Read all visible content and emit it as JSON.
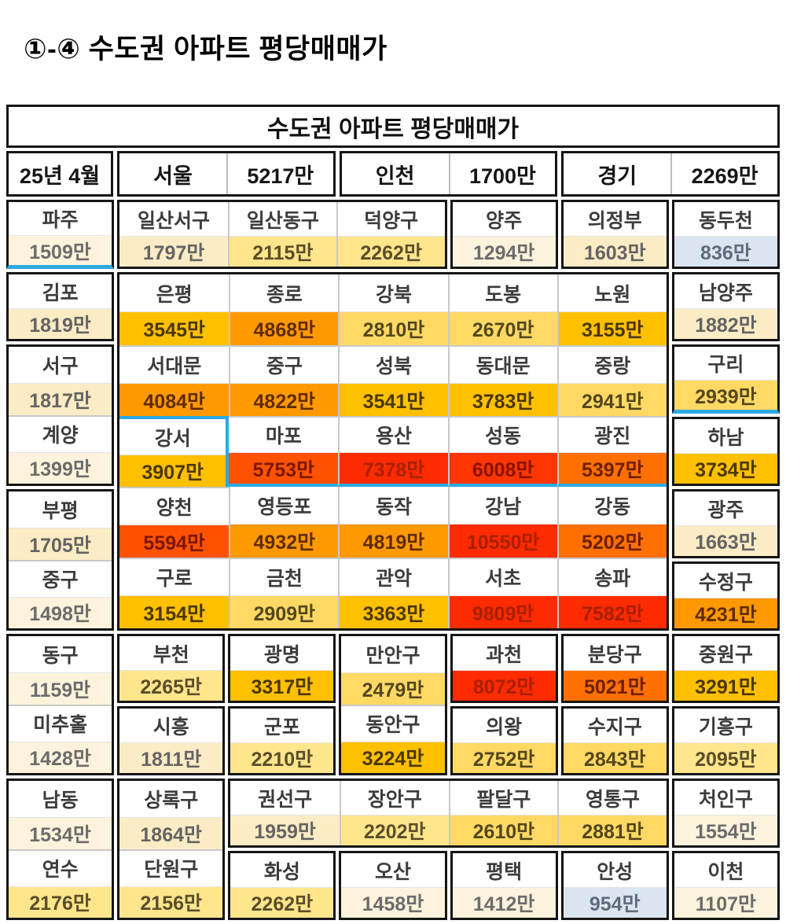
{
  "page_title": "①-④ 수도권 아파트 평당매매가",
  "table": {
    "title": "수도권 아파트 평당매매가",
    "header": {
      "date": "25년 4월",
      "regions": [
        {
          "name": "서울",
          "value": "5217만"
        },
        {
          "name": "인천",
          "value": "1700만"
        },
        {
          "name": "경기",
          "value": "2269만"
        }
      ]
    },
    "colors": {
      "highlight": "#2CA9E1",
      "border_thick": "#151515",
      "border_thin": "#C9C9C9"
    },
    "tiers": {
      "blue": {
        "bg": "#DBE5F1",
        "fg": "#5E6C7C"
      },
      "cream1": {
        "bg": "#FDF3DC",
        "fg": "#6C6C6C"
      },
      "cream2": {
        "bg": "#FBECC5",
        "fg": "#646464"
      },
      "yellow1": {
        "bg": "#FFE68C",
        "fg": "#5B4E2A"
      },
      "yellow2": {
        "bg": "#FFD964",
        "fg": "#54471D"
      },
      "gold": {
        "bg": "#FFC000",
        "fg": "#4A3700"
      },
      "orange": {
        "bg": "#FF9900",
        "fg": "#5F2C00"
      },
      "orange2": {
        "bg": "#FF7000",
        "fg": "#6E1F00"
      },
      "orange3": {
        "bg": "#FF5200",
        "fg": "#7A1600"
      },
      "red2": {
        "bg": "#FF3600",
        "fg": "#8A1200"
      },
      "red": {
        "bg": "#FF2B00",
        "fg": "#A81F00"
      }
    },
    "groups": [
      {
        "r": 1,
        "c": 1,
        "cyan_bottom": true,
        "cells": [
          {
            "n": "파주",
            "v": "1509만",
            "t": "cream1"
          }
        ]
      },
      {
        "r": 1,
        "c": 2,
        "cs": 3,
        "cells": [
          {
            "n": "일산서구",
            "v": "1797만",
            "t": "cream2"
          },
          {
            "n": "일산동구",
            "v": "2115만",
            "t": "yellow1"
          },
          {
            "n": "덕양구",
            "v": "2262만",
            "t": "yellow1"
          }
        ]
      },
      {
        "r": 1,
        "c": 5,
        "cells": [
          {
            "n": "양주",
            "v": "1294만",
            "t": "cream1"
          }
        ]
      },
      {
        "r": 1,
        "c": 6,
        "cells": [
          {
            "n": "의정부",
            "v": "1603만",
            "t": "cream2"
          }
        ]
      },
      {
        "r": 1,
        "c": 7,
        "cells": [
          {
            "n": "동두천",
            "v": "836만",
            "t": "blue"
          }
        ]
      },
      {
        "r": 2,
        "c": 1,
        "cells": [
          {
            "n": "김포",
            "v": "1819만",
            "t": "cream2"
          }
        ]
      },
      {
        "r": 2,
        "c": 2,
        "rs": 5,
        "cs": 5,
        "cells": [
          {
            "n": "은평",
            "v": "3545만",
            "t": "gold"
          },
          {
            "n": "종로",
            "v": "4868만",
            "t": "orange"
          },
          {
            "n": "강북",
            "v": "2810만",
            "t": "yellow2"
          },
          {
            "n": "도봉",
            "v": "2670만",
            "t": "yellow2"
          },
          {
            "n": "노원",
            "v": "3155만",
            "t": "gold"
          },
          {
            "n": "서대문",
            "v": "4084만",
            "t": "orange"
          },
          {
            "n": "중구",
            "v": "4822만",
            "t": "orange"
          },
          {
            "n": "성북",
            "v": "3541만",
            "t": "gold"
          },
          {
            "n": "동대문",
            "v": "3783만",
            "t": "gold"
          },
          {
            "n": "중랑",
            "v": "2941만",
            "t": "yellow2"
          },
          {
            "n": "강서",
            "v": "3907만",
            "t": "gold",
            "cls": "ct cr"
          },
          {
            "n": "마포",
            "v": "5753만",
            "t": "orange3",
            "cls": "cb nl"
          },
          {
            "n": "용산",
            "v": "7378만",
            "t": "red",
            "cls": "cb"
          },
          {
            "n": "성동",
            "v": "6008만",
            "t": "red2",
            "cls": "cb"
          },
          {
            "n": "광진",
            "v": "5397만",
            "t": "orange2",
            "cls": "cb"
          },
          {
            "n": "양천",
            "v": "5594만",
            "t": "orange3"
          },
          {
            "n": "영등포",
            "v": "4932만",
            "t": "orange",
            "cls": "nt"
          },
          {
            "n": "동작",
            "v": "4819만",
            "t": "orange",
            "cls": "nt"
          },
          {
            "n": "강남",
            "v": "10550만",
            "t": "red",
            "cls": "nt"
          },
          {
            "n": "강동",
            "v": "5202만",
            "t": "orange2",
            "cls": "nt"
          },
          {
            "n": "구로",
            "v": "3154만",
            "t": "gold"
          },
          {
            "n": "금천",
            "v": "2909만",
            "t": "yellow2"
          },
          {
            "n": "관악",
            "v": "3363만",
            "t": "gold"
          },
          {
            "n": "서초",
            "v": "9809만",
            "t": "red"
          },
          {
            "n": "송파",
            "v": "7582만",
            "t": "red"
          }
        ]
      },
      {
        "r": 2,
        "c": 7,
        "cells": [
          {
            "n": "남양주",
            "v": "1882만",
            "t": "cream2"
          }
        ]
      },
      {
        "r": 3,
        "c": 1,
        "rs": 2,
        "cells": [
          {
            "n": "서구",
            "v": "1817만",
            "t": "cream2"
          },
          {
            "n": "계양",
            "v": "1399만",
            "t": "cream1"
          }
        ]
      },
      {
        "r": 3,
        "c": 7,
        "cyan_bottom": true,
        "cells": [
          {
            "n": "구리",
            "v": "2939만",
            "t": "yellow2"
          }
        ]
      },
      {
        "r": 4,
        "c": 7,
        "cells": [
          {
            "n": "하남",
            "v": "3734만",
            "t": "gold"
          }
        ]
      },
      {
        "r": 5,
        "c": 1,
        "rs": 2,
        "cells": [
          {
            "n": "부평",
            "v": "1705만",
            "t": "cream2"
          },
          {
            "n": "중구",
            "v": "1498만",
            "t": "cream1"
          }
        ]
      },
      {
        "r": 5,
        "c": 7,
        "cells": [
          {
            "n": "광주",
            "v": "1663만",
            "t": "cream2"
          }
        ]
      },
      {
        "r": 6,
        "c": 7,
        "cells": [
          {
            "n": "수정구",
            "v": "4231만",
            "t": "orange"
          }
        ]
      },
      {
        "r": 7,
        "c": 1,
        "rs": 2,
        "cells": [
          {
            "n": "동구",
            "v": "1159만",
            "t": "cream1"
          },
          {
            "n": "미추홀",
            "v": "1428만",
            "t": "cream1"
          }
        ]
      },
      {
        "r": 7,
        "c": 2,
        "cells": [
          {
            "n": "부천",
            "v": "2265만",
            "t": "yellow1"
          }
        ]
      },
      {
        "r": 7,
        "c": 3,
        "cells": [
          {
            "n": "광명",
            "v": "3317만",
            "t": "gold"
          }
        ]
      },
      {
        "r": 7,
        "c": 4,
        "rs": 2,
        "cells": [
          {
            "n": "만안구",
            "v": "2479만",
            "t": "yellow2"
          },
          {
            "n": "동안구",
            "v": "3224만",
            "t": "gold"
          }
        ]
      },
      {
        "r": 7,
        "c": 5,
        "cells": [
          {
            "n": "과천",
            "v": "8072만",
            "t": "red"
          }
        ]
      },
      {
        "r": 7,
        "c": 6,
        "cells": [
          {
            "n": "분당구",
            "v": "5021만",
            "t": "orange2"
          }
        ]
      },
      {
        "r": 7,
        "c": 7,
        "cells": [
          {
            "n": "중원구",
            "v": "3291만",
            "t": "gold"
          }
        ]
      },
      {
        "r": 8,
        "c": 2,
        "cells": [
          {
            "n": "시흥",
            "v": "1811만",
            "t": "cream2"
          }
        ]
      },
      {
        "r": 8,
        "c": 3,
        "cells": [
          {
            "n": "군포",
            "v": "2210만",
            "t": "yellow1"
          }
        ]
      },
      {
        "r": 8,
        "c": 5,
        "cells": [
          {
            "n": "의왕",
            "v": "2752만",
            "t": "yellow2"
          }
        ]
      },
      {
        "r": 8,
        "c": 6,
        "cells": [
          {
            "n": "수지구",
            "v": "2843만",
            "t": "yellow2"
          }
        ]
      },
      {
        "r": 8,
        "c": 7,
        "cells": [
          {
            "n": "기흥구",
            "v": "2095만",
            "t": "yellow1"
          }
        ]
      },
      {
        "r": 9,
        "c": 1,
        "rs": 2,
        "cells": [
          {
            "n": "남동",
            "v": "1534만",
            "t": "cream1"
          },
          {
            "n": "연수",
            "v": "2176만",
            "t": "yellow1"
          }
        ]
      },
      {
        "r": 9,
        "c": 2,
        "rs": 2,
        "cells": [
          {
            "n": "상록구",
            "v": "1864만",
            "t": "cream2"
          },
          {
            "n": "단원구",
            "v": "2156만",
            "t": "yellow1"
          }
        ]
      },
      {
        "r": 9,
        "c": 3,
        "cs": 4,
        "cells": [
          {
            "n": "권선구",
            "v": "1959만",
            "t": "cream2"
          },
          {
            "n": "장안구",
            "v": "2202만",
            "t": "yellow1"
          },
          {
            "n": "팔달구",
            "v": "2610만",
            "t": "yellow2"
          },
          {
            "n": "영통구",
            "v": "2881만",
            "t": "yellow2"
          }
        ]
      },
      {
        "r": 9,
        "c": 7,
        "cells": [
          {
            "n": "처인구",
            "v": "1554만",
            "t": "cream1"
          }
        ]
      },
      {
        "r": 10,
        "c": 3,
        "cells": [
          {
            "n": "화성",
            "v": "2262만",
            "t": "yellow1"
          }
        ]
      },
      {
        "r": 10,
        "c": 4,
        "cells": [
          {
            "n": "오산",
            "v": "1458만",
            "t": "cream1"
          }
        ]
      },
      {
        "r": 10,
        "c": 5,
        "cells": [
          {
            "n": "평택",
            "v": "1412만",
            "t": "cream1"
          }
        ]
      },
      {
        "r": 10,
        "c": 6,
        "cells": [
          {
            "n": "안성",
            "v": "954만",
            "t": "blue"
          }
        ]
      },
      {
        "r": 10,
        "c": 7,
        "cells": [
          {
            "n": "이천",
            "v": "1107만",
            "t": "cream1"
          }
        ]
      }
    ]
  },
  "chart_data": {
    "type": "heatmap",
    "title": "수도권 아파트 평당매매가",
    "date": "25년 4월",
    "unit": "만",
    "region_averages": [
      {
        "name": "서울",
        "value": 5217
      },
      {
        "name": "인천",
        "value": 1700
      },
      {
        "name": "경기",
        "value": 2269
      }
    ],
    "rows": [
      [
        [
          "파주",
          1509
        ],
        [
          "일산서구",
          1797
        ],
        [
          "일산동구",
          2115
        ],
        [
          "덕양구",
          2262
        ],
        [
          "양주",
          1294
        ],
        [
          "의정부",
          1603
        ],
        [
          "동두천",
          836
        ]
      ],
      [
        [
          "김포",
          1819
        ],
        [
          "은평",
          3545
        ],
        [
          "종로",
          4868
        ],
        [
          "강북",
          2810
        ],
        [
          "도봉",
          2670
        ],
        [
          "노원",
          3155
        ],
        [
          "남양주",
          1882
        ]
      ],
      [
        [
          "서구",
          1817
        ],
        [
          "서대문",
          4084
        ],
        [
          "중구",
          4822
        ],
        [
          "성북",
          3541
        ],
        [
          "동대문",
          3783
        ],
        [
          "중랑",
          2941
        ],
        [
          "구리",
          2939
        ]
      ],
      [
        [
          "계양",
          1399
        ],
        [
          "강서",
          3907
        ],
        [
          "마포",
          5753
        ],
        [
          "용산",
          7378
        ],
        [
          "성동",
          6008
        ],
        [
          "광진",
          5397
        ],
        [
          "하남",
          3734
        ]
      ],
      [
        [
          "부평",
          1705
        ],
        [
          "양천",
          5594
        ],
        [
          "영등포",
          4932
        ],
        [
          "동작",
          4819
        ],
        [
          "강남",
          10550
        ],
        [
          "강동",
          5202
        ],
        [
          "광주",
          1663
        ]
      ],
      [
        [
          "중구",
          1498
        ],
        [
          "구로",
          3154
        ],
        [
          "금천",
          2909
        ],
        [
          "관악",
          3363
        ],
        [
          "서초",
          9809
        ],
        [
          "송파",
          7582
        ],
        [
          "수정구",
          4231
        ]
      ],
      [
        [
          "동구",
          1159
        ],
        [
          "부천",
          2265
        ],
        [
          "광명",
          3317
        ],
        [
          "만안구",
          2479
        ],
        [
          "과천",
          8072
        ],
        [
          "분당구",
          5021
        ],
        [
          "중원구",
          3291
        ]
      ],
      [
        [
          "미추홀",
          1428
        ],
        [
          "시흥",
          1811
        ],
        [
          "군포",
          2210
        ],
        [
          "동안구",
          3224
        ],
        [
          "의왕",
          2752
        ],
        [
          "수지구",
          2843
        ],
        [
          "기흥구",
          2095
        ]
      ],
      [
        [
          "남동",
          1534
        ],
        [
          "상록구",
          1864
        ],
        [
          "권선구",
          1959
        ],
        [
          "장안구",
          2202
        ],
        [
          "팔달구",
          2610
        ],
        [
          "영통구",
          2881
        ],
        [
          "처인구",
          1554
        ]
      ],
      [
        [
          "연수",
          2176
        ],
        [
          "단원구",
          2156
        ],
        [
          "화성",
          2262
        ],
        [
          "오산",
          1458
        ],
        [
          "평택",
          1412
        ],
        [
          "안성",
          954
        ],
        [
          "이천",
          1107
        ]
      ]
    ],
    "legend_note": "cell color encodes price tier; blue = lowest, red = highest",
    "highlight_color": "#2CA9E1"
  }
}
